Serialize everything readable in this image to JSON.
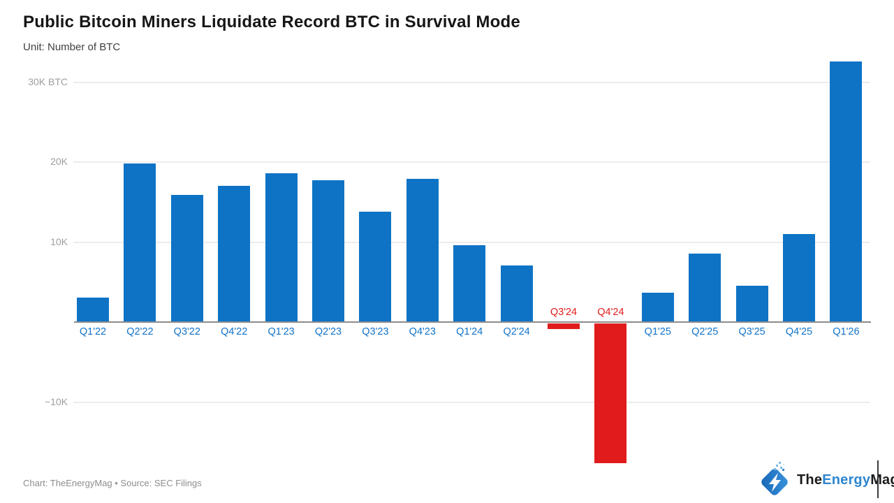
{
  "header": {
    "title": "Public Bitcoin Miners Liquidate Record BTC in Survival Mode",
    "subtitle": "Unit: Number of BTC"
  },
  "footer": {
    "credit": "Chart: TheEnergyMag • Source: SEC Filings"
  },
  "logo": {
    "icon": "lightning-bolt-diamond-icon",
    "part1": "The",
    "part2": "Energy",
    "part3": "Mag"
  },
  "colors": {
    "bar_positive": "#0E73C5",
    "bar_negative": "#E11B1B",
    "x_label_positive": "#1273C8",
    "x_label_negative": "#E11B1B",
    "y_tick_label": "#9E9E9E",
    "gridline": "#ECECEC",
    "axis_line": "#8C8C8C",
    "logo_blue": "#2E86CF"
  },
  "chart_data": {
    "type": "bar",
    "title": "Public Bitcoin Miners Liquidate Record BTC in Survival Mode",
    "unit_label": "Unit: Number of BTC",
    "xlabel": "",
    "ylabel": "Number of BTC",
    "categories": [
      "Q1'22",
      "Q2'22",
      "Q3'22",
      "Q4'22",
      "Q1'23",
      "Q2'23",
      "Q3'23",
      "Q4'23",
      "Q1'24",
      "Q2'24",
      "Q3'24",
      "Q4'24",
      "Q1'25",
      "Q2'25",
      "Q3'25",
      "Q4'25",
      "Q1'26"
    ],
    "values": [
      3100,
      19800,
      15900,
      17000,
      18600,
      17700,
      13800,
      17900,
      9600,
      7100,
      -700,
      -17500,
      3700,
      8600,
      4500,
      11000,
      32600
    ],
    "negative_categories": [
      "Q3'24",
      "Q4'24"
    ],
    "y_ticks": [
      {
        "value": 30000,
        "label": "30K BTC"
      },
      {
        "value": 20000,
        "label": "20K"
      },
      {
        "value": 10000,
        "label": "10K"
      },
      {
        "value": -10000,
        "label": "−10K"
      }
    ],
    "ylim": [
      -20000,
      33500
    ],
    "grid": true,
    "legend": "none"
  }
}
